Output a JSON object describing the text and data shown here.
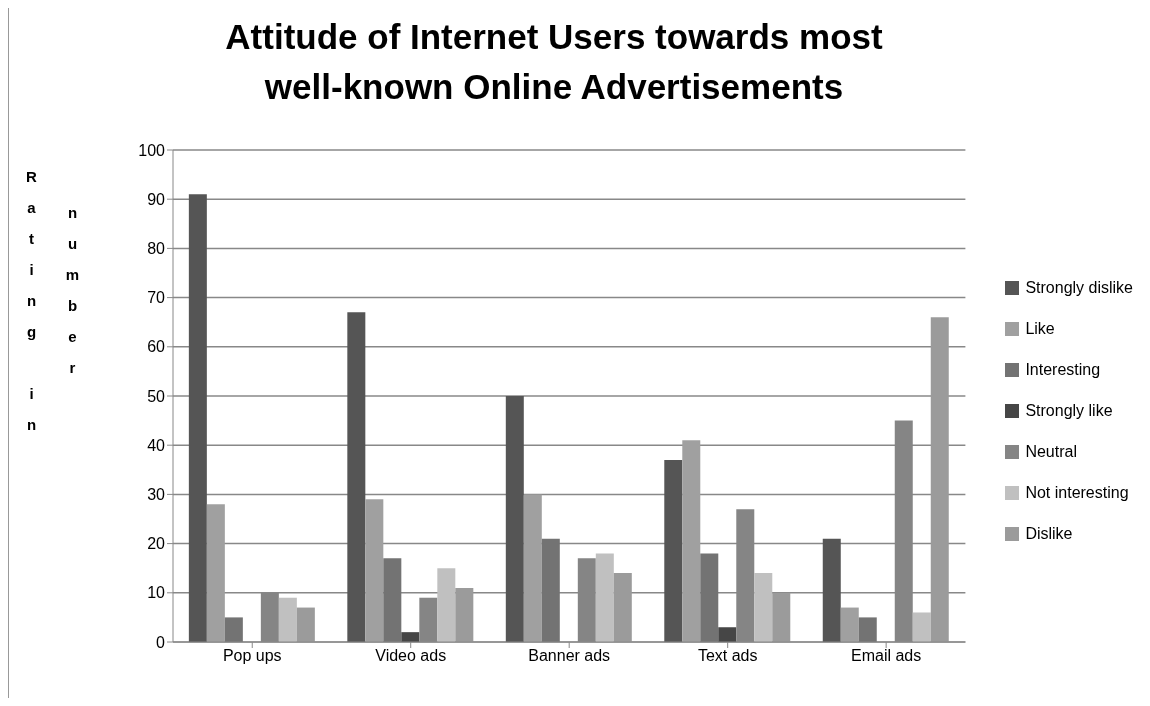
{
  "chart_data": {
    "type": "bar",
    "title": "Attitude of Internet Users towards most well-known Online Advertisements",
    "ylabel": "Rating in number",
    "categories": [
      "Pop ups",
      "Video ads",
      "Banner ads",
      "Text ads",
      "Email ads"
    ],
    "series": [
      {
        "name": "Strongly dislike",
        "color": "#555555",
        "values": [
          91,
          67,
          50,
          37,
          21
        ]
      },
      {
        "name": "Like",
        "color": "#a0a0a0",
        "values": [
          28,
          29,
          30,
          41,
          7
        ]
      },
      {
        "name": "Interesting",
        "color": "#737373",
        "values": [
          5,
          17,
          21,
          18,
          5
        ]
      },
      {
        "name": "Strongly like",
        "color": "#464646",
        "values": [
          0,
          2,
          0,
          3,
          0
        ]
      },
      {
        "name": "Neutral",
        "color": "#858585",
        "values": [
          10,
          9,
          17,
          27,
          45
        ]
      },
      {
        "name": "Not interesting",
        "color": "#c0c0c0",
        "values": [
          9,
          15,
          18,
          14,
          6
        ]
      },
      {
        "name": "Dislike",
        "color": "#9b9b9b",
        "values": [
          7,
          11,
          14,
          10,
          66
        ]
      }
    ],
    "ylim": [
      0,
      100
    ],
    "yticks": [
      0,
      10,
      20,
      30,
      40,
      50,
      60,
      70,
      80,
      90,
      100
    ],
    "grid": "y",
    "legend": "right"
  }
}
